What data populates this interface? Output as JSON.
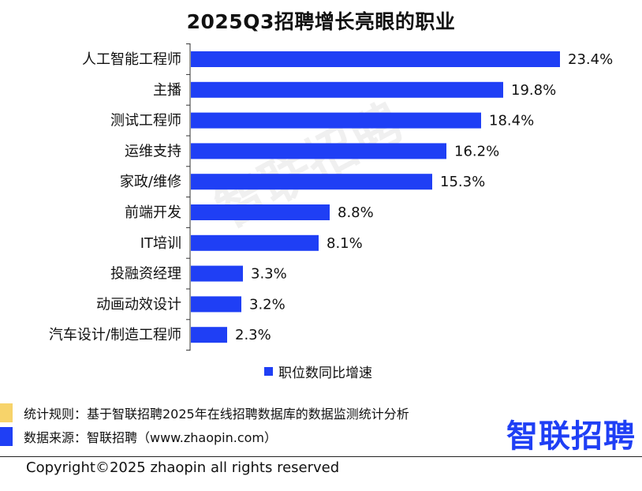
{
  "title": "2025Q3招聘增长亮眼的职业",
  "watermark": "智联招聘",
  "chart_data": {
    "type": "bar",
    "orientation": "horizontal",
    "categories": [
      "人工智能工程师",
      "主播",
      "测试工程师",
      "运维支持",
      "家政/维修",
      "前端开发",
      "IT培训",
      "投融资经理",
      "动画动效设计",
      "汽车设计/制造工程师"
    ],
    "series": [
      {
        "name": "职位数同比增速",
        "values": [
          23.4,
          19.8,
          18.4,
          16.2,
          15.3,
          8.8,
          8.1,
          3.3,
          3.2,
          2.3
        ],
        "color": "#1f3ff5"
      }
    ],
    "value_labels": [
      "23.4%",
      "19.8%",
      "18.4%",
      "16.2%",
      "15.3%",
      "8.8%",
      "8.1%",
      "3.3%",
      "3.2%",
      "2.3%"
    ],
    "unit": "%",
    "legend": {
      "label": "职位数同比增速",
      "position": "bottom-center"
    },
    "grid": false
  },
  "notes": [
    {
      "text": "统计规则：基于智联招聘2025年在线招聘数据库的数据监测统计分析",
      "marker_color": "#f7d36a"
    },
    {
      "text": "数据来源：智联招聘（www.zhaopin.com）",
      "marker_color": "#1f3ff5"
    }
  ],
  "brand_logo": "智联招聘",
  "copyright": "Copyright©2025 zhaopin all rights reserved"
}
